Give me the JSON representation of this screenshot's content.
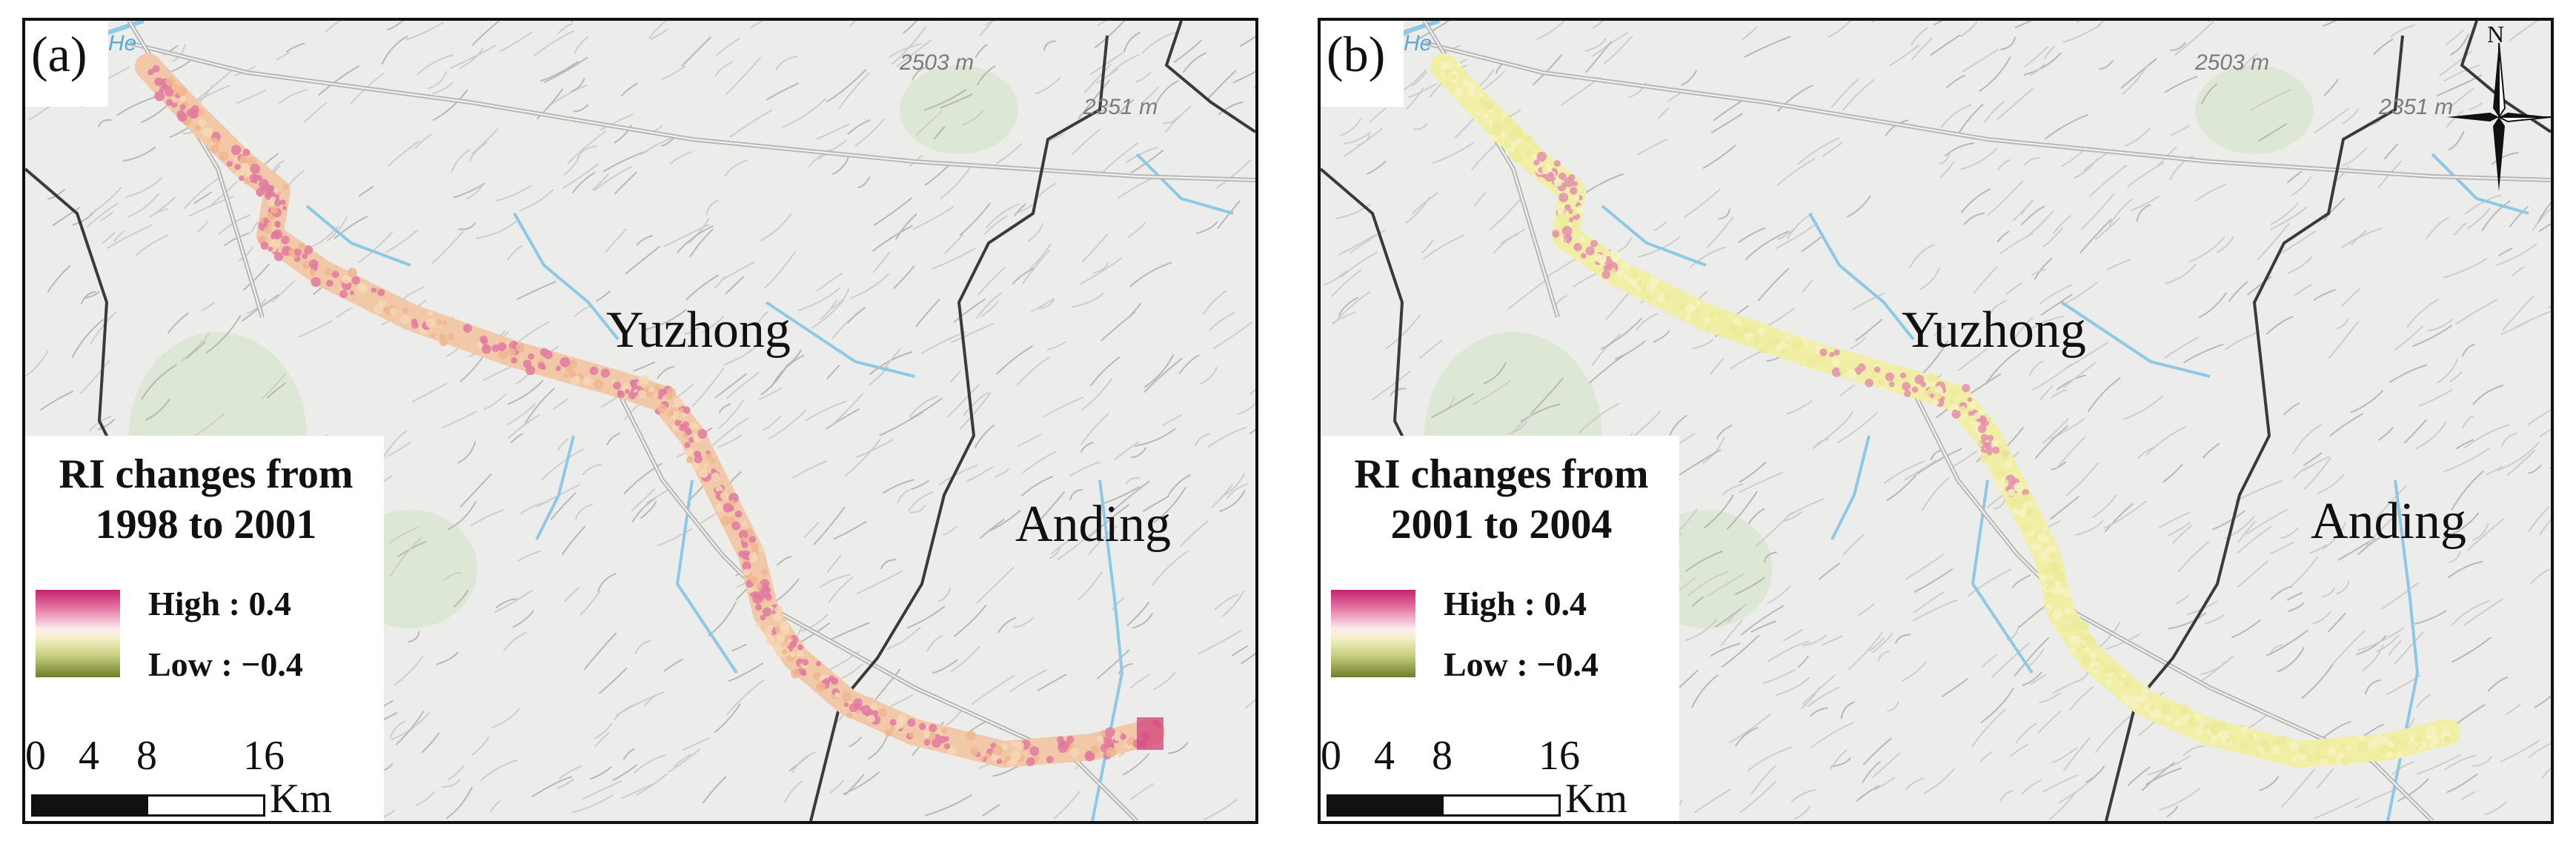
{
  "panels": [
    {
      "id": "a",
      "label": "(a)",
      "legend": {
        "title_line1": "RI changes from",
        "title_line2": "1998 to 2001",
        "high": "High : 0.4",
        "low": "Low : −0.4"
      },
      "change_tone": "strong",
      "north_arrow": false
    },
    {
      "id": "b",
      "label": "(b)",
      "legend": {
        "title_line1": "RI changes from",
        "title_line2": "2001 to 2004",
        "high": "High : 0.4",
        "low": "Low : −0.4"
      },
      "change_tone": "mild",
      "north_arrow": true
    }
  ],
  "places": {
    "yuzhong": "Yuzhong",
    "anding": "Anding"
  },
  "elevations": {
    "peak1": "2503 m",
    "peak2": "2351 m"
  },
  "river_label": "He",
  "scale_bar": {
    "ticks": [
      "0",
      "4",
      "8",
      "16"
    ],
    "unit": "Km"
  },
  "north_label": "N",
  "colors": {
    "high": "#c2236e",
    "mid": "#f4f1c9",
    "low": "#6e7e2c",
    "river": "#8cc8e8",
    "road": "#b7b7b7",
    "boundary": "#3a3a3a"
  }
}
